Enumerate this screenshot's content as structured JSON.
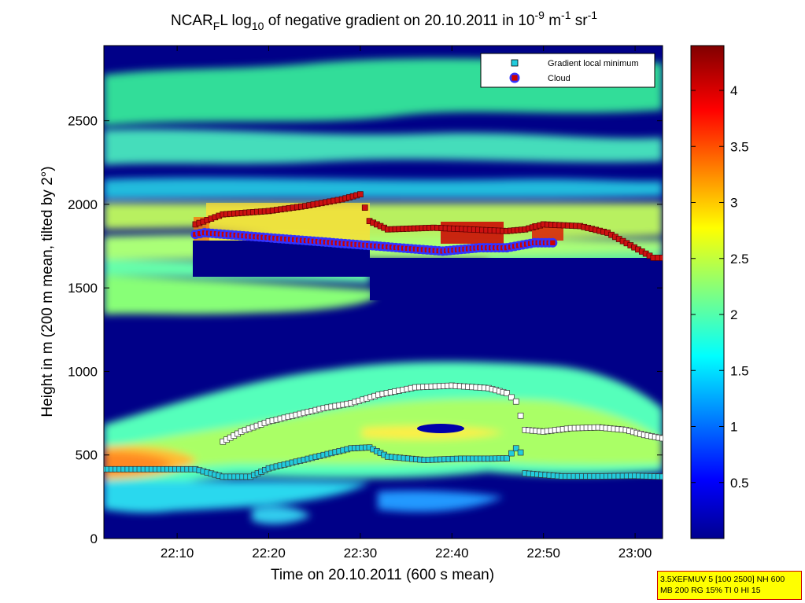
{
  "title": {
    "prefix": "NCAR",
    "sub_f": "F",
    "mid1": "L log",
    "sub_10": "10",
    "mid2": " of negative gradient on 20.10.2011 in 10",
    "sup_neg9": "-9",
    "mid3": " m",
    "sup_neg1a": "-1",
    "mid4": " sr",
    "sup_neg1b": "-1"
  },
  "info_box": {
    "line1": "3.5XEFMUV 5 [100 2500] NH 600",
    "line2": "MB 200 RG 15% TI 0 HI 15"
  },
  "colors": {
    "background": "#000088",
    "gradient_marker": "#22ccdd",
    "upper_marker": "#ffffff",
    "cloud_base_marker": "#cc0000",
    "cloud_ring": "#3333ff",
    "cloud_top_marker": "#cc1111",
    "legend_marker_edge": "#000000"
  },
  "chart_data": {
    "type": "heatmap",
    "title": "NCAR_F L log10 of negative gradient on 20.10.2011 in 10^-9 m^-1 sr^-1",
    "xlabel": "Time on 20.10.2011 (600 s mean)",
    "ylabel": "Height in m (200 m mean, tilted by 2°)",
    "x_unit": "minutes",
    "xlim": [
      "22:02",
      "23:03"
    ],
    "ylim": [
      0,
      2950
    ],
    "x_ticks": [
      "22:10",
      "22:20",
      "22:30",
      "22:40",
      "22:50",
      "23:00"
    ],
    "y_ticks": [
      "0",
      "500",
      "1000",
      "1500",
      "2000",
      "2500"
    ],
    "colorbar": {
      "range": [
        0,
        4.4
      ],
      "ticks": [
        "0.5",
        "1",
        "1.5",
        "2",
        "2.5",
        "3",
        "3.5",
        "4"
      ],
      "colormap": "jet"
    },
    "legend": {
      "location": "top-right",
      "entries": [
        "Gradient local minimum",
        "Cloud"
      ]
    },
    "series": [
      {
        "name": "Gradient local minimum",
        "kind": "lower",
        "points": [
          [
            "22:02",
            415
          ],
          [
            "22:12",
            415
          ],
          [
            "22:15",
            370
          ],
          [
            "22:18",
            370
          ],
          [
            "22:20",
            420
          ],
          [
            "22:23",
            460
          ],
          [
            "22:26",
            500
          ],
          [
            "22:29",
            540
          ],
          [
            "22:31",
            545
          ],
          [
            "22:33",
            490
          ],
          [
            "22:37",
            470
          ],
          [
            "22:41",
            478
          ],
          [
            "22:44",
            478
          ],
          [
            "22:46",
            480
          ],
          [
            "22:47",
            540
          ],
          [
            "22:48",
            490
          ],
          [
            "22:48",
            390
          ],
          [
            "22:52",
            372
          ],
          [
            "22:56",
            372
          ],
          [
            "23:00",
            375
          ],
          [
            "23:03",
            370
          ]
        ]
      },
      {
        "name": "Gradient local minimum",
        "kind": "upper",
        "points": [
          [
            "22:15",
            580
          ],
          [
            "22:17",
            640
          ],
          [
            "22:20",
            700
          ],
          [
            "22:23",
            740
          ],
          [
            "22:26",
            780
          ],
          [
            "22:29",
            810
          ],
          [
            "22:32",
            860
          ],
          [
            "22:36",
            905
          ],
          [
            "22:40",
            915
          ],
          [
            "22:44",
            900
          ],
          [
            "22:46",
            870
          ],
          [
            "22:47",
            820
          ],
          [
            "22:48",
            650
          ],
          [
            "22:50",
            640
          ],
          [
            "22:53",
            660
          ],
          [
            "22:56",
            665
          ],
          [
            "22:59",
            650
          ],
          [
            "23:01",
            620
          ],
          [
            "23:03",
            600
          ]
        ]
      },
      {
        "name": "Cloud",
        "kind": "cloud_top",
        "points": [
          [
            "22:12",
            1880
          ],
          [
            "22:15",
            1940
          ],
          [
            "22:20",
            1960
          ],
          [
            "22:24",
            1990
          ],
          [
            "22:28",
            2030
          ],
          [
            "22:30",
            2060
          ],
          [
            "22:31",
            1900
          ],
          [
            "22:33",
            1850
          ],
          [
            "22:38",
            1860
          ],
          [
            "22:42",
            1850
          ],
          [
            "22:46",
            1840
          ],
          [
            "22:48",
            1850
          ],
          [
            "22:50",
            1880
          ],
          [
            "22:54",
            1870
          ],
          [
            "22:57",
            1830
          ],
          [
            "23:02",
            1680
          ],
          [
            "23:03",
            1680
          ]
        ]
      },
      {
        "name": "Cloud",
        "kind": "cloud_base",
        "points": [
          [
            "22:12",
            1820
          ],
          [
            "22:13",
            1830
          ],
          [
            "22:39",
            1720
          ],
          [
            "22:41",
            1730
          ],
          [
            "22:43",
            1740
          ],
          [
            "22:46",
            1740
          ],
          [
            "22:49",
            1770
          ],
          [
            "22:51",
            1770
          ]
        ]
      }
    ]
  }
}
